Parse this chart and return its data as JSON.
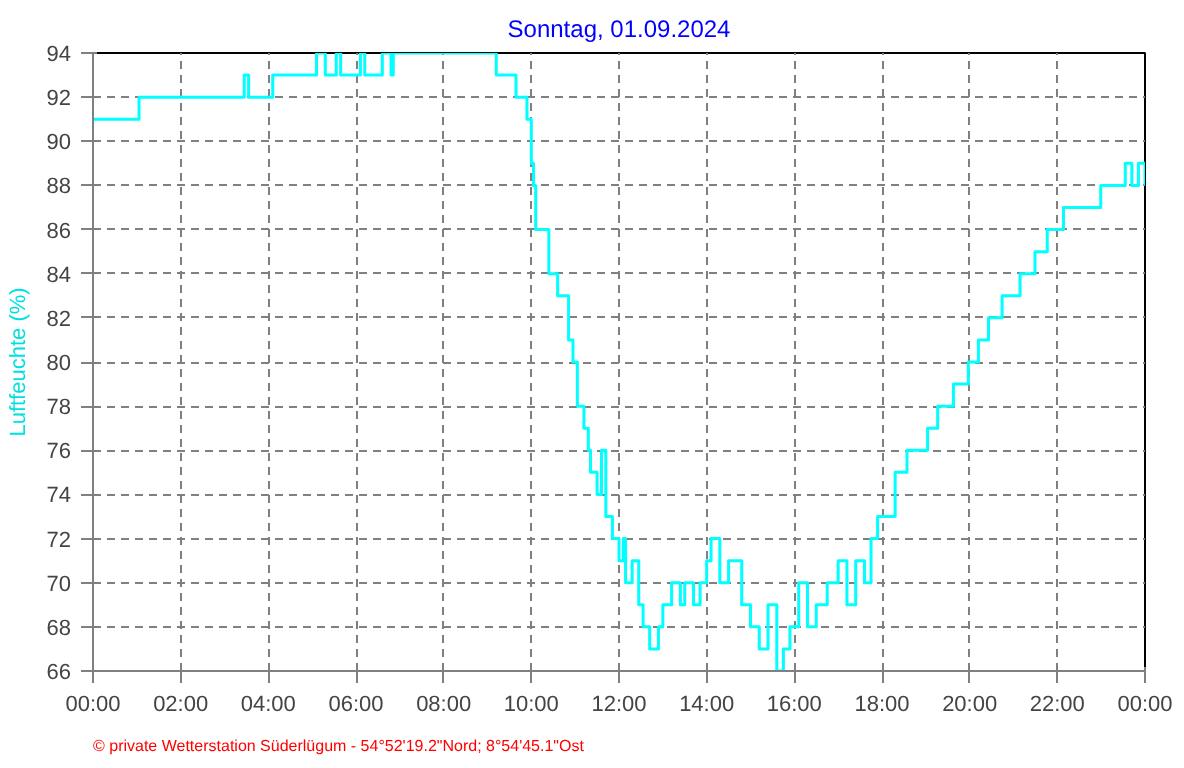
{
  "chart_data": {
    "type": "step",
    "title": "Sonntag, 01.09.2024",
    "ylabel": "Luftfeuchte (%)",
    "annotations": [
      "© private Wetterstation Süderlügum - 54°52'19.2\"Nord; 8°54'45.1\"Ost"
    ],
    "x": [
      0,
      1.05,
      3.45,
      3.55,
      4.1,
      5.1,
      5.3,
      5.55,
      5.65,
      6.1,
      6.2,
      6.6,
      6.8,
      6.85,
      9.2,
      9.65,
      9.9,
      10.0,
      10.05,
      10.1,
      10.4,
      10.6,
      10.85,
      10.95,
      11.05,
      11.2,
      11.3,
      11.35,
      11.5,
      11.6,
      11.7,
      11.85,
      12.0,
      12.1,
      12.15,
      12.3,
      12.45,
      12.55,
      12.7,
      12.9,
      13.0,
      13.2,
      13.4,
      13.5,
      13.7,
      13.85,
      14.0,
      14.1,
      14.3,
      14.5,
      14.8,
      15.0,
      15.2,
      15.4,
      15.6,
      15.75,
      15.9,
      16.1,
      16.3,
      16.5,
      16.75,
      17.0,
      17.2,
      17.4,
      17.6,
      17.75,
      17.9,
      18.3,
      18.57,
      19.04,
      19.27,
      19.63,
      19.97,
      20.2,
      20.43,
      20.74,
      21.15,
      21.49,
      21.77,
      22.14,
      22.99,
      23.55,
      23.7,
      23.85,
      24
    ],
    "series": [
      {
        "color": "#00ffff",
        "values": [
          91,
          92,
          93,
          92,
          93,
          94,
          93,
          94,
          93,
          94,
          93,
          94,
          93,
          94,
          93,
          92,
          91,
          89,
          88,
          86,
          84,
          83,
          81,
          80,
          78,
          77,
          76,
          75,
          74,
          76,
          73,
          72,
          71,
          72,
          70,
          71,
          69,
          68,
          67,
          68,
          69,
          70,
          69,
          70,
          69,
          70,
          71,
          72,
          70,
          71,
          69,
          68,
          67,
          69,
          66,
          67,
          68,
          70,
          68,
          69,
          70,
          71,
          69,
          71,
          70,
          72,
          73,
          75,
          76,
          77,
          78,
          79,
          80,
          81,
          82,
          83,
          84,
          85,
          86,
          87,
          88,
          89,
          88,
          89,
          88
        ]
      }
    ],
    "xlim": [
      0,
      24
    ],
    "xticks": [
      {
        "value": 0,
        "label": "00:00"
      },
      {
        "value": 2,
        "label": "02:00"
      },
      {
        "value": 4,
        "label": "04:00"
      },
      {
        "value": 6,
        "label": "06:00"
      },
      {
        "value": 8,
        "label": "08:00"
      },
      {
        "value": 10,
        "label": "10:00"
      },
      {
        "value": 12,
        "label": "12:00"
      },
      {
        "value": 14,
        "label": "14:00"
      },
      {
        "value": 16,
        "label": "16:00"
      },
      {
        "value": 18,
        "label": "18:00"
      },
      {
        "value": 20,
        "label": "20:00"
      },
      {
        "value": 22,
        "label": "22:00"
      },
      {
        "value": 24,
        "label": "00:00"
      }
    ],
    "ylim": [
      66,
      94
    ],
    "yticks": [
      66,
      68,
      70,
      72,
      74,
      76,
      78,
      80,
      82,
      84,
      86,
      88,
      90,
      92,
      94
    ],
    "grid": true,
    "line_style": "solid",
    "marker": "none"
  }
}
